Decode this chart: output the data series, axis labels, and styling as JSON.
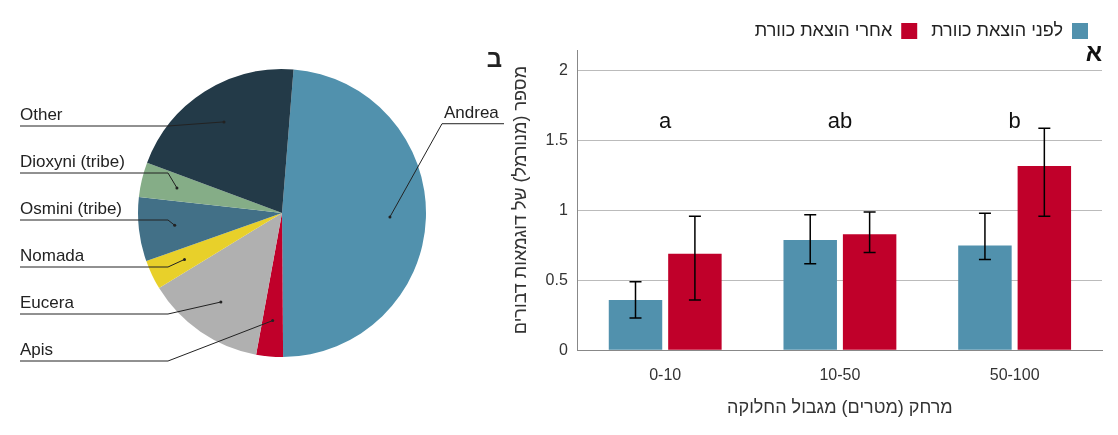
{
  "chart_data": [
    {
      "type": "bar",
      "title": "א",
      "xlabel": "מרחק (מטרים) מגבול החלוקה",
      "ylabel": "מספר (מנורמל) של דוגמאות דבורים",
      "categories": [
        "0-10",
        "10-50",
        "50-100"
      ],
      "series": [
        {
          "name": "לפני הוצאת כוורת",
          "color": "#5191ad",
          "values": [
            0.36,
            0.79,
            0.75
          ],
          "errors": [
            [
              0.23,
              0.49
            ],
            [
              0.62,
              0.97
            ],
            [
              0.65,
              0.98
            ]
          ]
        },
        {
          "name": "אחרי הוצאת כוורת",
          "color": "#c0002a",
          "values": [
            0.69,
            0.83,
            1.32
          ],
          "errors": [
            [
              0.36,
              0.96
            ],
            [
              0.7,
              0.99
            ],
            [
              0.96,
              1.59
            ]
          ]
        }
      ],
      "ylim": [
        0,
        2.15
      ],
      "yticks": [
        0,
        0.5,
        1,
        1.5,
        2
      ],
      "grid": "y",
      "legend": "top right",
      "annotations": [
        "a",
        "ab",
        "b"
      ]
    },
    {
      "type": "pie",
      "title": "ב",
      "categories": [
        "Andrea",
        "Apis",
        "Eucera",
        "Nomada",
        "Osmini (tribe)",
        "Dioxyni (tribe)",
        "Other"
      ],
      "values": [
        48.6,
        3,
        13.4,
        3.3,
        7.2,
        3.9,
        20.6
      ],
      "colors": [
        "#5191ad",
        "#c0002a",
        "#b0b0b0",
        "#e8d02a",
        "#427087",
        "#85ad87",
        "#233a48"
      ],
      "legend": false
    }
  ]
}
